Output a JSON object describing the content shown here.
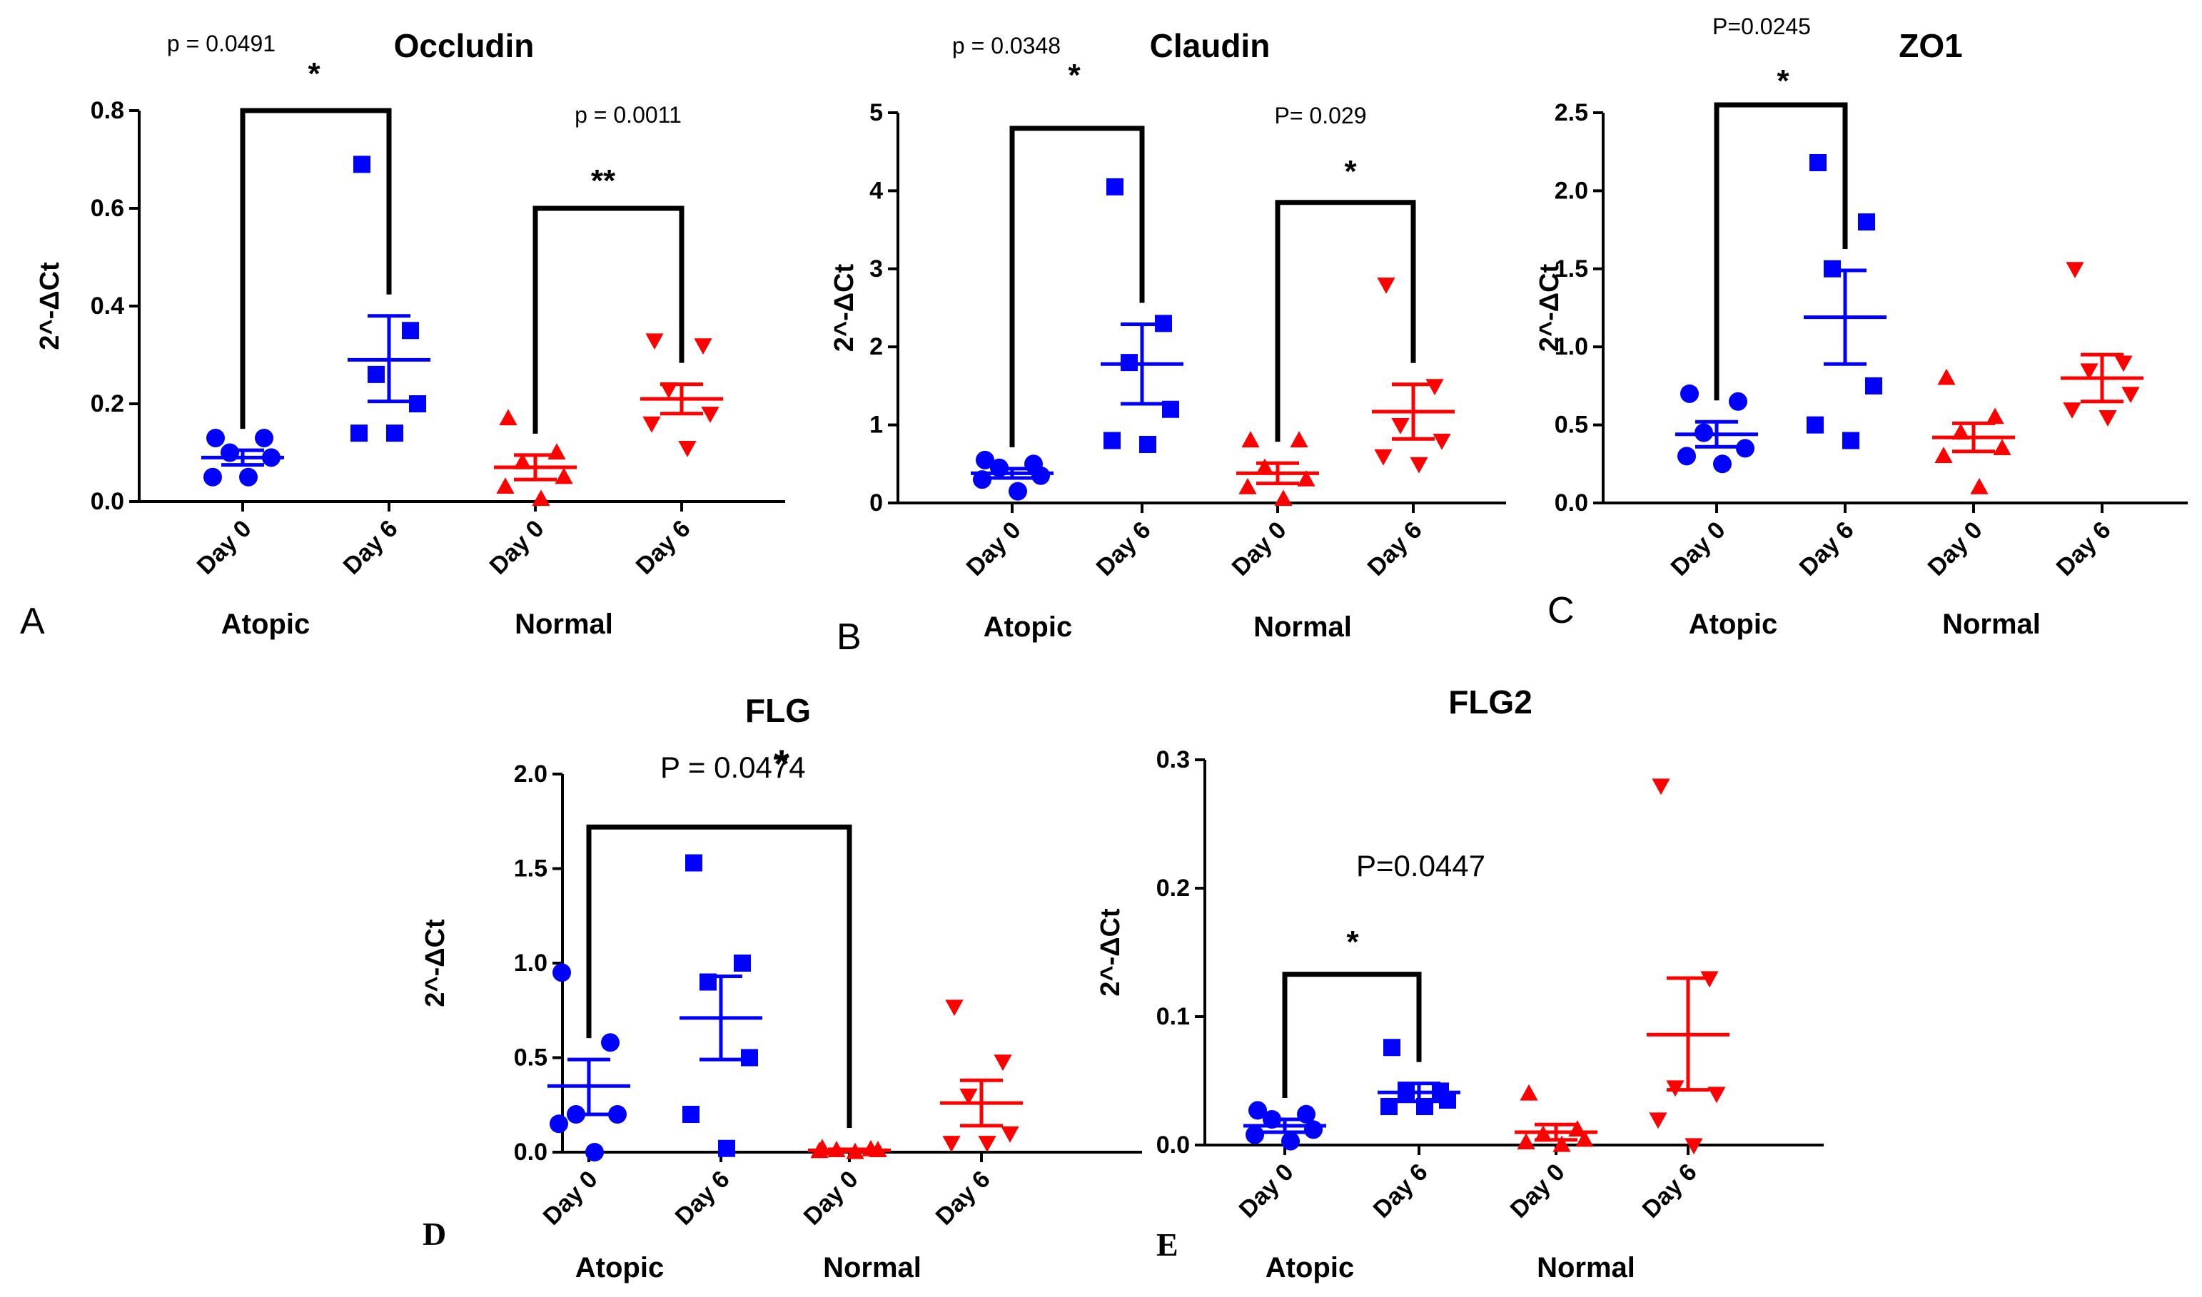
{
  "colors": {
    "atopic": "#0000ff",
    "normal": "#ff0000",
    "axis": "#000000"
  },
  "chart_data": [
    {
      "panel": "A",
      "type": "scatter",
      "title": "Occludin",
      "ylabel": "2^-ΔCt",
      "ylim": [
        0,
        0.8
      ],
      "yticks": [
        0,
        0.2,
        0.4,
        0.6,
        0.8
      ],
      "ytick_labels": [
        "0.0",
        "0.2",
        "0.4",
        "0.6",
        "0.8"
      ],
      "categories": [
        "Day 0",
        "Day 6",
        "Day 0",
        "Day 6"
      ],
      "group_labels": [
        "Atopic",
        "Normal"
      ],
      "series": [
        {
          "name": "Atopic Day 0",
          "group": "Atopic",
          "marker": "circle",
          "mean": 0.09,
          "sem": [
            0.075,
            0.105
          ],
          "points": [
            0.13,
            0.13,
            0.1,
            0.09,
            0.05,
            0.05
          ]
        },
        {
          "name": "Atopic Day 6",
          "group": "Atopic",
          "marker": "square",
          "mean": 0.29,
          "sem": [
            0.205,
            0.38
          ],
          "points": [
            0.69,
            0.35,
            0.26,
            0.2,
            0.14,
            0.14
          ]
        },
        {
          "name": "Normal Day 0",
          "group": "Normal",
          "marker": "triangle-up",
          "mean": 0.07,
          "sem": [
            0.045,
            0.095
          ],
          "points": [
            0.17,
            0.1,
            0.08,
            0.05,
            0.03,
            0.005
          ]
        },
        {
          "name": "Normal Day 6",
          "group": "Normal",
          "marker": "triangle-down",
          "mean": 0.21,
          "sem": [
            0.18,
            0.24
          ],
          "points": [
            0.33,
            0.32,
            0.23,
            0.18,
            0.16,
            0.11
          ]
        }
      ],
      "comparisons": [
        {
          "from": 0,
          "to": 1,
          "y": 0.8,
          "p": "p = 0.0491",
          "stars": "*"
        },
        {
          "from": 2,
          "to": 3,
          "y": 0.6,
          "p": "p = 0.0011",
          "stars": "**"
        }
      ]
    },
    {
      "panel": "B",
      "type": "scatter",
      "title": "Claudin",
      "ylabel": "2^-ΔCt",
      "ylim": [
        0,
        5
      ],
      "yticks": [
        0,
        1,
        2,
        3,
        4,
        5
      ],
      "ytick_labels": [
        "0",
        "1",
        "2",
        "3",
        "4",
        "5"
      ],
      "categories": [
        "Day 0",
        "Day 6",
        "Day 0",
        "Day 6"
      ],
      "group_labels": [
        "Atopic",
        "Normal"
      ],
      "series": [
        {
          "name": "Atopic Day 0",
          "group": "Atopic",
          "marker": "circle",
          "mean": 0.38,
          "sem": [
            0.32,
            0.44
          ],
          "points": [
            0.55,
            0.5,
            0.45,
            0.35,
            0.3,
            0.15
          ]
        },
        {
          "name": "Atopic Day 6",
          "group": "Atopic",
          "marker": "square",
          "mean": 1.78,
          "sem": [
            1.27,
            2.29
          ],
          "points": [
            4.05,
            2.3,
            1.8,
            1.2,
            0.8,
            0.75
          ]
        },
        {
          "name": "Normal Day 0",
          "group": "Normal",
          "marker": "triangle-up",
          "mean": 0.38,
          "sem": [
            0.25,
            0.51
          ],
          "points": [
            0.8,
            0.8,
            0.45,
            0.3,
            0.2,
            0.05
          ]
        },
        {
          "name": "Normal Day 6",
          "group": "Normal",
          "marker": "triangle-down",
          "mean": 1.17,
          "sem": [
            0.82,
            1.52
          ],
          "points": [
            2.8,
            1.5,
            1.0,
            0.8,
            0.6,
            0.5
          ]
        }
      ],
      "comparisons": [
        {
          "from": 0,
          "to": 1,
          "y": 4.8,
          "p": "p = 0.0348",
          "stars": "*"
        },
        {
          "from": 2,
          "to": 3,
          "y": 3.85,
          "p": "P= 0.029",
          "stars": "*"
        }
      ]
    },
    {
      "panel": "C",
      "type": "scatter",
      "title": "ZO1",
      "ylabel": "2^-ΔCt",
      "ylim": [
        0,
        2.5
      ],
      "yticks": [
        0,
        0.5,
        1.0,
        1.5,
        2.0,
        2.5
      ],
      "ytick_labels": [
        "0.0",
        "0.5",
        "1.0",
        "1.5",
        "2.0",
        "2.5"
      ],
      "categories": [
        "Day 0",
        "Day 6",
        "Day 0",
        "Day 6"
      ],
      "group_labels": [
        "Atopic",
        "Normal"
      ],
      "series": [
        {
          "name": "Atopic Day 0",
          "group": "Atopic",
          "marker": "circle",
          "mean": 0.44,
          "sem": [
            0.36,
            0.52
          ],
          "points": [
            0.7,
            0.65,
            0.45,
            0.35,
            0.3,
            0.25
          ]
        },
        {
          "name": "Atopic Day 6",
          "group": "Atopic",
          "marker": "square",
          "mean": 1.19,
          "sem": [
            0.89,
            1.49
          ],
          "points": [
            2.18,
            1.8,
            1.5,
            0.75,
            0.5,
            0.4
          ]
        },
        {
          "name": "Normal Day 0",
          "group": "Normal",
          "marker": "triangle-up",
          "mean": 0.42,
          "sem": [
            0.33,
            0.51
          ],
          "points": [
            0.8,
            0.55,
            0.45,
            0.35,
            0.3,
            0.1
          ]
        },
        {
          "name": "Normal Day 6",
          "group": "Normal",
          "marker": "triangle-down",
          "mean": 0.8,
          "sem": [
            0.65,
            0.95
          ],
          "points": [
            1.5,
            0.9,
            0.85,
            0.7,
            0.6,
            0.55
          ]
        }
      ],
      "comparisons": [
        {
          "from": 0,
          "to": 1,
          "y": 2.55,
          "p": "P=0.0245",
          "stars": "*"
        }
      ]
    },
    {
      "panel": "D",
      "type": "scatter",
      "title": "FLG",
      "ylabel": "2^-ΔCt",
      "ylim": [
        0,
        2.0
      ],
      "yticks": [
        0,
        0.5,
        1.0,
        1.5,
        2.0
      ],
      "ytick_labels": [
        "0.0",
        "0.5",
        "1.0",
        "1.5",
        "2.0"
      ],
      "categories": [
        "Day 0",
        "Day 6",
        "Day 0",
        "Day 6"
      ],
      "group_labels": [
        "Atopic",
        "Normal"
      ],
      "series": [
        {
          "name": "Atopic Day 0",
          "group": "Atopic",
          "marker": "circle",
          "mean": 0.35,
          "sem": [
            0.2,
            0.49
          ],
          "points": [
            0.95,
            0.58,
            0.2,
            0.2,
            0.15,
            0.0
          ]
        },
        {
          "name": "Atopic Day 6",
          "group": "Atopic",
          "marker": "square",
          "mean": 0.71,
          "sem": [
            0.49,
            0.93
          ],
          "points": [
            1.53,
            1.0,
            0.9,
            0.5,
            0.2,
            0.02
          ]
        },
        {
          "name": "Normal Day 0",
          "group": "Normal",
          "marker": "triangle-up",
          "mean": 0.01,
          "sem": [
            0.005,
            0.015
          ],
          "points": [
            0.02,
            0.015,
            0.01,
            0.01,
            0.005,
            0.0
          ]
        },
        {
          "name": "Normal Day 6",
          "group": "Normal",
          "marker": "triangle-down",
          "mean": 0.26,
          "sem": [
            0.14,
            0.38
          ],
          "points": [
            0.77,
            0.48,
            0.3,
            0.1,
            0.05,
            0.05
          ]
        }
      ],
      "comparisons": [
        {
          "from": 0,
          "to": 2,
          "y": 1.72,
          "p": "P = 0.0474",
          "stars": "*"
        }
      ]
    },
    {
      "panel": "E",
      "type": "scatter",
      "title": "FLG2",
      "ylabel": "2^-ΔCt",
      "ylim": [
        0,
        0.3
      ],
      "yticks": [
        0,
        0.1,
        0.2,
        0.3
      ],
      "ytick_labels": [
        "0.0",
        "0.1",
        "0.2",
        "0.3"
      ],
      "categories": [
        "Day 0",
        "Day 6",
        "Day 0",
        "Day 6"
      ],
      "group_labels": [
        "Atopic",
        "Normal"
      ],
      "series": [
        {
          "name": "Atopic Day 0",
          "group": "Atopic",
          "marker": "circle",
          "mean": 0.015,
          "sem": [
            0.01,
            0.02
          ],
          "points": [
            0.027,
            0.024,
            0.02,
            0.012,
            0.008,
            0.003
          ]
        },
        {
          "name": "Atopic Day 6",
          "group": "Atopic",
          "marker": "square",
          "mean": 0.041,
          "sem": [
            0.034,
            0.048
          ],
          "points": [
            0.076,
            0.042,
            0.04,
            0.035,
            0.03,
            0.03
          ]
        },
        {
          "name": "Normal Day 0",
          "group": "Normal",
          "marker": "triangle-up",
          "mean": 0.01,
          "sem": [
            0.004,
            0.016
          ],
          "points": [
            0.04,
            0.012,
            0.008,
            0.004,
            0.002,
            0.0
          ]
        },
        {
          "name": "Normal Day 6",
          "group": "Normal",
          "marker": "triangle-down",
          "mean": 0.086,
          "sem": [
            0.043,
            0.13
          ],
          "points": [
            0.28,
            0.13,
            0.045,
            0.04,
            0.02,
            0.0
          ]
        }
      ],
      "comparisons": [
        {
          "from": 0,
          "to": 1,
          "y": 0.133,
          "p": "P=0.0447",
          "stars": "*"
        }
      ]
    }
  ]
}
